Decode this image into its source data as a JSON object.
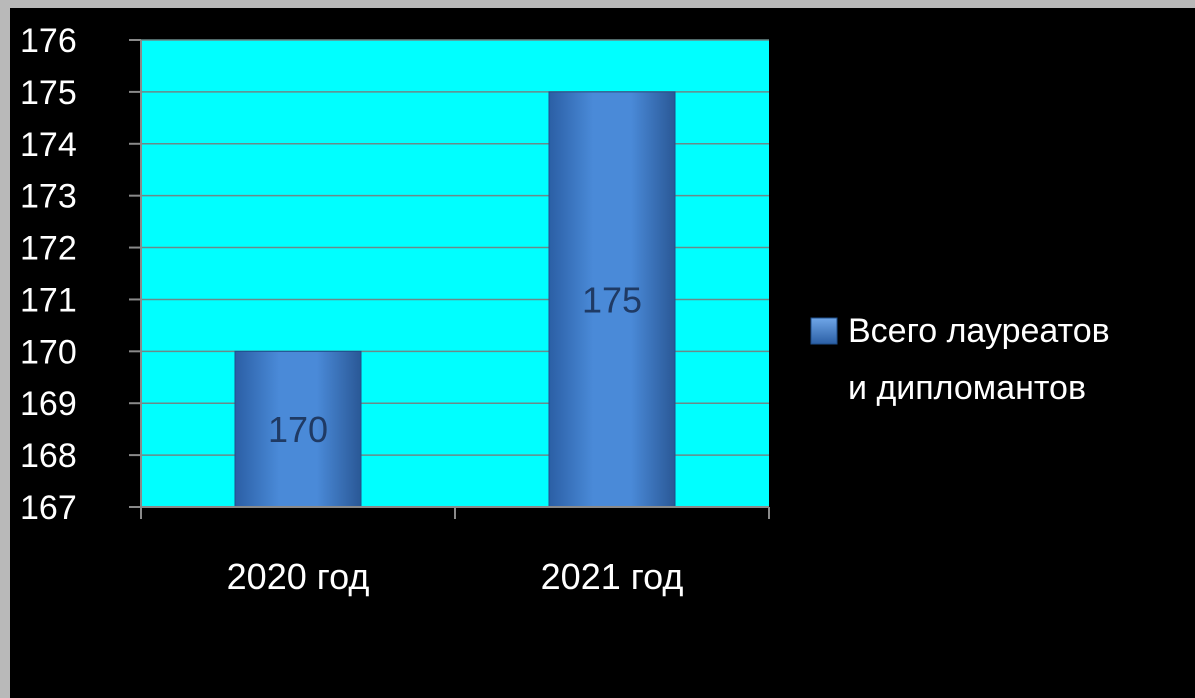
{
  "chart_data": {
    "type": "bar",
    "categories": [
      "2020 год",
      "2021 год"
    ],
    "series": [
      {
        "name": "Всего лауреатов и дипломантов",
        "legend_lines": [
          "Всего лауреатов",
          "и дипломантов"
        ],
        "values": [
          170,
          175
        ]
      }
    ],
    "data_labels": [
      "170",
      "175"
    ],
    "ylim": [
      167,
      176
    ],
    "yticks": [
      167,
      168,
      169,
      170,
      171,
      172,
      173,
      174,
      175,
      176
    ],
    "grid": true,
    "legend_position": "right",
    "colors": {
      "plot_background": "#00ffff",
      "chart_background": "#000000",
      "bar_fill": "#3d76c4",
      "bar_edge": "#1f4e8a",
      "data_label": "#1f3a64",
      "text": "#ffffff"
    }
  }
}
